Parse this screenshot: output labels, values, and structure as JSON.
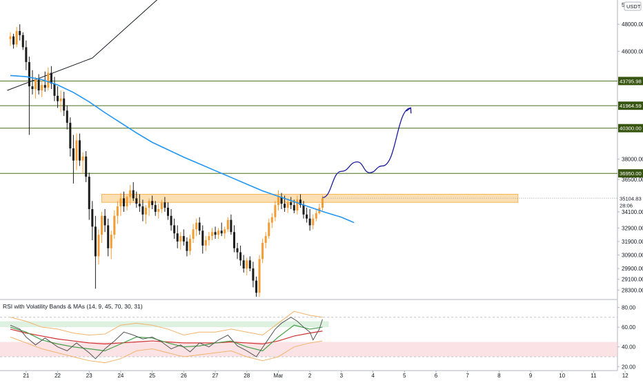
{
  "chart_data": {
    "type": "candlestick",
    "symbol_currency": "USDT",
    "ylim": [
      27600,
      49800
    ],
    "price_ticks": [
      48000,
      46000,
      38000,
      36500,
      34100,
      32900,
      31900,
      30900,
      29900,
      29100,
      28300
    ],
    "price_tick_labels": [
      "48000.00",
      "46000.00",
      "38000.00",
      "36500.00",
      "34100.00",
      "32900.00",
      "31900.00",
      "30900.00",
      "29900.00",
      "29100.00",
      "28300.00"
    ],
    "corner_label": "5",
    "x_ticks": [
      "21",
      "22",
      "23",
      "24",
      "25",
      "26",
      "27",
      "28",
      "Mar",
      "2",
      "3",
      "4",
      "5",
      "6",
      "7",
      "8",
      "9",
      "10",
      "11",
      "12"
    ],
    "horizontal_levels": [
      {
        "value": 43795.98,
        "label": "43795.98"
      },
      {
        "value": 41964.59,
        "label": "41964.59"
      },
      {
        "value": 40300.0,
        "label": "40300.00"
      },
      {
        "value": 36950.0,
        "label": "36950.00"
      }
    ],
    "current_price": {
      "value": 35104.83,
      "label": "35104.83",
      "countdown": "28:06"
    },
    "resistance_zone": {
      "from": 34800,
      "to": 35400
    },
    "trend_line": [
      [
        20.4,
        43100
      ],
      [
        23.1,
        45500
      ],
      [
        27.15,
        54000
      ]
    ],
    "moving_average": [
      [
        20.5,
        44200
      ],
      [
        21.0,
        44120
      ],
      [
        21.5,
        43900
      ],
      [
        22.0,
        43500
      ],
      [
        22.5,
        42950
      ],
      [
        23.0,
        42250
      ],
      [
        23.5,
        41450
      ],
      [
        24.0,
        40700
      ],
      [
        24.5,
        39950
      ],
      [
        25.0,
        39250
      ],
      [
        25.5,
        38700
      ],
      [
        26.0,
        38150
      ],
      [
        26.5,
        37650
      ],
      [
        27.0,
        37150
      ],
      [
        27.5,
        36650
      ],
      [
        28.0,
        36150
      ],
      [
        28.5,
        35650
      ],
      [
        29.0,
        35250
      ],
      [
        29.5,
        34850
      ],
      [
        30.0,
        34450
      ],
      [
        30.5,
        34050
      ],
      [
        31.0,
        33700
      ],
      [
        31.4,
        33300
      ]
    ],
    "projection_path": [
      [
        30.4,
        35150
      ],
      [
        31.0,
        37100
      ],
      [
        31.5,
        37800
      ],
      [
        31.9,
        37000
      ],
      [
        32.3,
        37500
      ],
      [
        33.2,
        41800
      ]
    ],
    "candles": [
      [
        20.5,
        46900,
        47400,
        46400,
        47100
      ],
      [
        20.6,
        47100,
        47300,
        46200,
        46500
      ],
      [
        20.7,
        46500,
        47800,
        46300,
        47500
      ],
      [
        20.8,
        47500,
        48000,
        46800,
        47200
      ],
      [
        20.9,
        47200,
        47400,
        46100,
        46300
      ],
      [
        21.0,
        46300,
        46800,
        44600,
        45200
      ],
      [
        21.1,
        45200,
        45600,
        39800,
        43400
      ],
      [
        21.2,
        43400,
        44600,
        42800,
        43200
      ],
      [
        21.3,
        43200,
        44100,
        42500,
        43900
      ],
      [
        21.4,
        43900,
        44300,
        42800,
        43100
      ],
      [
        21.5,
        43100,
        43800,
        42600,
        43500
      ],
      [
        21.6,
        43500,
        44500,
        43000,
        43300
      ],
      [
        21.7,
        43300,
        44800,
        43100,
        44400
      ],
      [
        21.8,
        44400,
        44900,
        43200,
        43600
      ],
      [
        21.9,
        43600,
        44100,
        42300,
        42700
      ],
      [
        22.0,
        42700,
        43400,
        41800,
        42300
      ],
      [
        22.1,
        42300,
        43100,
        41500,
        42500
      ],
      [
        22.2,
        42500,
        43000,
        41200,
        41600
      ],
      [
        22.3,
        41600,
        42000,
        40200,
        40700
      ],
      [
        22.4,
        40700,
        41100,
        38200,
        38800
      ],
      [
        22.5,
        38800,
        39800,
        36200,
        37900
      ],
      [
        22.6,
        37900,
        39900,
        37200,
        39400
      ],
      [
        22.7,
        39400,
        39900,
        37500,
        37900
      ],
      [
        22.8,
        37900,
        38500,
        36900,
        38200
      ],
      [
        22.9,
        38200,
        38600,
        36300,
        36700
      ],
      [
        23.0,
        36700,
        37000,
        33500,
        34300
      ],
      [
        23.1,
        34300,
        34900,
        32000,
        33000
      ],
      [
        23.2,
        33000,
        33800,
        28400,
        30800
      ],
      [
        23.3,
        30800,
        32800,
        30200,
        32400
      ],
      [
        23.4,
        32400,
        34100,
        31800,
        33800
      ],
      [
        23.5,
        33800,
        34300,
        32600,
        33100
      ],
      [
        23.6,
        33100,
        33600,
        30800,
        31400
      ],
      [
        23.7,
        31400,
        32700,
        30600,
        32400
      ],
      [
        23.8,
        32400,
        34200,
        32100,
        33800
      ],
      [
        23.9,
        33800,
        34900,
        33200,
        34500
      ],
      [
        24.0,
        34500,
        35500,
        33800,
        35100
      ],
      [
        24.1,
        35100,
        35600,
        34100,
        34500
      ],
      [
        24.2,
        34500,
        35300,
        34200,
        35200
      ],
      [
        24.3,
        35200,
        36100,
        34600,
        35700
      ],
      [
        24.4,
        35700,
        36300,
        34900,
        35100
      ],
      [
        24.5,
        35100,
        35600,
        34400,
        34700
      ],
      [
        24.6,
        34700,
        35400,
        34100,
        34500
      ],
      [
        24.7,
        34500,
        35000,
        33400,
        33900
      ],
      [
        24.8,
        33900,
        34600,
        33200,
        34400
      ],
      [
        24.9,
        34400,
        35100,
        33800,
        34900
      ],
      [
        25.0,
        34900,
        35300,
        34300,
        34600
      ],
      [
        25.1,
        34600,
        34900,
        33800,
        34100
      ],
      [
        25.2,
        34100,
        34700,
        33600,
        34300
      ],
      [
        25.3,
        34300,
        35000,
        34000,
        34800
      ],
      [
        25.4,
        34800,
        35200,
        34100,
        34400
      ],
      [
        25.5,
        34400,
        34800,
        33500,
        33800
      ],
      [
        25.6,
        33800,
        34300,
        32700,
        33100
      ],
      [
        25.7,
        33100,
        33600,
        32100,
        32500
      ],
      [
        25.8,
        32500,
        33100,
        31400,
        31900
      ],
      [
        25.9,
        31900,
        32600,
        31300,
        32300
      ],
      [
        26.0,
        32300,
        32800,
        31600,
        31900
      ],
      [
        26.1,
        31900,
        32200,
        30800,
        31200
      ],
      [
        26.2,
        31200,
        32400,
        30900,
        32100
      ],
      [
        26.3,
        32100,
        33200,
        31800,
        32800
      ],
      [
        26.4,
        32800,
        33600,
        32300,
        33300
      ],
      [
        26.5,
        33300,
        33700,
        32400,
        32700
      ],
      [
        26.6,
        32700,
        33100,
        31000,
        31600
      ],
      [
        26.7,
        31600,
        32300,
        31200,
        32000
      ],
      [
        26.8,
        32000,
        32600,
        31600,
        32300
      ],
      [
        26.9,
        32300,
        32900,
        32000,
        32600
      ],
      [
        27.0,
        32600,
        33000,
        32100,
        32400
      ],
      [
        27.1,
        32400,
        32900,
        32100,
        32700
      ],
      [
        27.2,
        32700,
        33300,
        32300,
        32500
      ],
      [
        27.3,
        32500,
        33000,
        32100,
        32800
      ],
      [
        27.4,
        32800,
        33700,
        32600,
        33500
      ],
      [
        27.5,
        33500,
        33900,
        32400,
        32600
      ],
      [
        27.6,
        32600,
        33100,
        31100,
        31400
      ],
      [
        27.7,
        31400,
        31800,
        30600,
        31100
      ],
      [
        27.8,
        31100,
        31600,
        30100,
        30500
      ],
      [
        27.9,
        30500,
        30900,
        29600,
        29900
      ],
      [
        28.0,
        29900,
        30700,
        29400,
        30500
      ],
      [
        28.1,
        30500,
        30800,
        29700,
        29900
      ],
      [
        28.2,
        29900,
        30400,
        28500,
        29000
      ],
      [
        28.3,
        29000,
        29300,
        27800,
        28100
      ],
      [
        28.4,
        28100,
        30900,
        27800,
        30600
      ],
      [
        28.5,
        30600,
        32100,
        30300,
        31800
      ],
      [
        28.6,
        31800,
        32600,
        31400,
        32300
      ],
      [
        28.7,
        32300,
        33600,
        32100,
        33300
      ],
      [
        28.8,
        33300,
        34000,
        32900,
        33700
      ],
      [
        28.9,
        33700,
        34900,
        33400,
        34600
      ],
      [
        29.0,
        34600,
        35700,
        34200,
        35200
      ],
      [
        29.1,
        35200,
        35500,
        34300,
        34700
      ],
      [
        29.2,
        34700,
        35300,
        34100,
        34400
      ],
      [
        29.3,
        34400,
        35100,
        34000,
        34800
      ],
      [
        29.4,
        34800,
        35200,
        34300,
        34600
      ],
      [
        29.5,
        34600,
        35000,
        34000,
        34200
      ],
      [
        29.6,
        34200,
        35300,
        33900,
        35000
      ],
      [
        29.7,
        35000,
        35400,
        34400,
        34600
      ],
      [
        29.8,
        34600,
        34900,
        33600,
        33900
      ],
      [
        29.9,
        33900,
        34400,
        33300,
        33600
      ],
      [
        30.0,
        33600,
        34300,
        32700,
        33100
      ],
      [
        30.1,
        33100,
        33900,
        32800,
        33600
      ],
      [
        30.2,
        33600,
        34300,
        33400,
        34000
      ],
      [
        30.3,
        34000,
        34700,
        33900,
        34400
      ],
      [
        30.4,
        34400,
        35300,
        34200,
        35104.83
      ]
    ],
    "oscillator": {
      "title": "RSI with Volatility Bands & MAs (14, 9, 45, 70, 30, 31)",
      "ylim": [
        16,
        88
      ],
      "ticks": [
        80,
        60,
        40,
        20
      ],
      "tick_labels": [
        "80.00",
        "60.00",
        "40.00",
        "20.00"
      ],
      "upper_band_zone": [
        60,
        66
      ],
      "lower_band_zone": [
        30,
        45
      ],
      "overbought": 70,
      "oversold": 30,
      "rsi": [
        [
          20.5,
          62
        ],
        [
          20.8,
          58
        ],
        [
          21.0,
          50
        ],
        [
          21.3,
          42
        ],
        [
          21.6,
          49
        ],
        [
          22.0,
          40
        ],
        [
          22.3,
          36
        ],
        [
          22.6,
          44
        ],
        [
          23.0,
          34
        ],
        [
          23.2,
          28
        ],
        [
          23.5,
          38
        ],
        [
          23.8,
          46
        ],
        [
          24.1,
          55
        ],
        [
          24.4,
          52
        ],
        [
          24.7,
          48
        ],
        [
          25.0,
          50
        ],
        [
          25.3,
          45
        ],
        [
          25.6,
          38
        ],
        [
          25.9,
          42
        ],
        [
          26.2,
          35
        ],
        [
          26.5,
          44
        ],
        [
          26.8,
          40
        ],
        [
          27.1,
          47
        ],
        [
          27.4,
          52
        ],
        [
          27.7,
          41
        ],
        [
          28.0,
          36
        ],
        [
          28.3,
          30
        ],
        [
          28.6,
          44
        ],
        [
          28.9,
          58
        ],
        [
          29.1,
          64
        ],
        [
          29.4,
          70
        ],
        [
          29.6,
          66
        ],
        [
          29.8,
          60
        ],
        [
          30.0,
          55
        ],
        [
          30.1,
          47
        ],
        [
          30.3,
          58
        ],
        [
          30.4,
          68
        ]
      ],
      "rsi_ma_fast": [
        [
          20.5,
          60
        ],
        [
          21.0,
          55
        ],
        [
          21.5,
          47
        ],
        [
          22.0,
          43
        ],
        [
          22.5,
          40
        ],
        [
          23.0,
          38
        ],
        [
          23.5,
          36
        ],
        [
          24.0,
          43
        ],
        [
          24.5,
          50
        ],
        [
          25.0,
          49
        ],
        [
          25.5,
          44
        ],
        [
          26.0,
          40
        ],
        [
          26.5,
          41
        ],
        [
          27.0,
          44
        ],
        [
          27.5,
          46
        ],
        [
          28.0,
          40
        ],
        [
          28.5,
          36
        ],
        [
          29.0,
          50
        ],
        [
          29.5,
          62
        ],
        [
          30.0,
          58
        ],
        [
          30.4,
          60
        ]
      ],
      "rsi_ma_slow": [
        [
          20.5,
          58
        ],
        [
          21.0,
          54
        ],
        [
          21.5,
          51
        ],
        [
          22.0,
          48
        ],
        [
          22.5,
          46
        ],
        [
          23.0,
          44
        ],
        [
          23.5,
          43
        ],
        [
          24.0,
          44
        ],
        [
          24.5,
          45
        ],
        [
          25.0,
          46
        ],
        [
          25.5,
          45
        ],
        [
          26.0,
          44
        ],
        [
          26.5,
          44
        ],
        [
          27.0,
          44
        ],
        [
          27.5,
          45
        ],
        [
          28.0,
          44
        ],
        [
          28.5,
          43
        ],
        [
          29.0,
          46
        ],
        [
          29.5,
          51
        ],
        [
          30.0,
          54
        ],
        [
          30.4,
          56
        ]
      ],
      "band_upper": [
        [
          20.5,
          70
        ],
        [
          21.0,
          66
        ],
        [
          21.5,
          60
        ],
        [
          22.0,
          58
        ],
        [
          22.5,
          54
        ],
        [
          23.0,
          52
        ],
        [
          23.5,
          53
        ],
        [
          24.0,
          62
        ],
        [
          24.5,
          64
        ],
        [
          25.0,
          62
        ],
        [
          25.5,
          58
        ],
        [
          26.0,
          52
        ],
        [
          26.5,
          55
        ],
        [
          27.0,
          55
        ],
        [
          27.5,
          58
        ],
        [
          28.0,
          55
        ],
        [
          28.5,
          52
        ],
        [
          29.0,
          64
        ],
        [
          29.5,
          76
        ],
        [
          30.0,
          72
        ],
        [
          30.4,
          70
        ]
      ],
      "band_lower": [
        [
          20.5,
          50
        ],
        [
          21.0,
          44
        ],
        [
          21.5,
          38
        ],
        [
          22.0,
          34
        ],
        [
          22.5,
          30
        ],
        [
          23.0,
          26
        ],
        [
          23.5,
          24
        ],
        [
          24.0,
          28
        ],
        [
          24.5,
          36
        ],
        [
          25.0,
          38
        ],
        [
          25.5,
          34
        ],
        [
          26.0,
          30
        ],
        [
          26.5,
          32
        ],
        [
          27.0,
          34
        ],
        [
          27.5,
          36
        ],
        [
          28.0,
          30
        ],
        [
          28.5,
          26
        ],
        [
          29.0,
          30
        ],
        [
          29.5,
          40
        ],
        [
          30.0,
          44
        ],
        [
          30.4,
          46
        ]
      ]
    }
  }
}
